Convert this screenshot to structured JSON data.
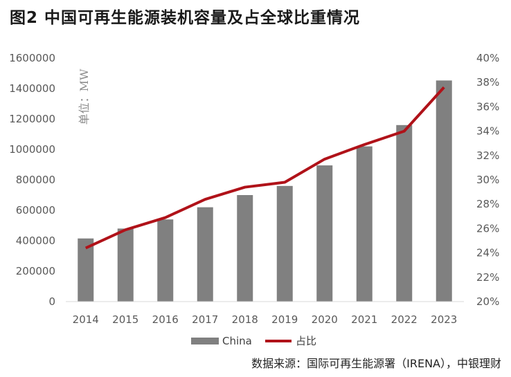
{
  "title": "图2  中国可再生能源装机容量及占全球比重情况",
  "source": "数据来源：国际可再生能源署（IRENA），中银理财",
  "colors": {
    "bar": "#808080",
    "line": "#b01219",
    "axis": "#d9d9d9",
    "text": "#595959"
  },
  "chart_data": {
    "type": "bar",
    "categories": [
      "2014",
      "2015",
      "2016",
      "2017",
      "2018",
      "2019",
      "2020",
      "2021",
      "2022",
      "2023"
    ],
    "series": [
      {
        "name": "China",
        "type": "bar",
        "axis": "left",
        "values": [
          415000,
          480000,
          540000,
          620000,
          700000,
          760000,
          895000,
          1020000,
          1160000,
          1453000
        ]
      },
      {
        "name": "占比",
        "type": "line",
        "axis": "right",
        "values": [
          24.4,
          25.9,
          26.9,
          28.4,
          29.4,
          29.8,
          31.7,
          32.9,
          34.0,
          37.6
        ]
      }
    ],
    "yunit": "单位：MW",
    "ylim": [
      0,
      1600000
    ],
    "yticks": [
      "0",
      "200000",
      "400000",
      "600000",
      "800000",
      "1000000",
      "1200000",
      "1400000",
      "1600000"
    ],
    "y2lim": [
      20,
      40
    ],
    "y2ticks": [
      "20%",
      "22%",
      "24%",
      "26%",
      "28%",
      "30%",
      "32%",
      "34%",
      "36%",
      "38%",
      "40%"
    ],
    "legend_position": "bottom"
  }
}
